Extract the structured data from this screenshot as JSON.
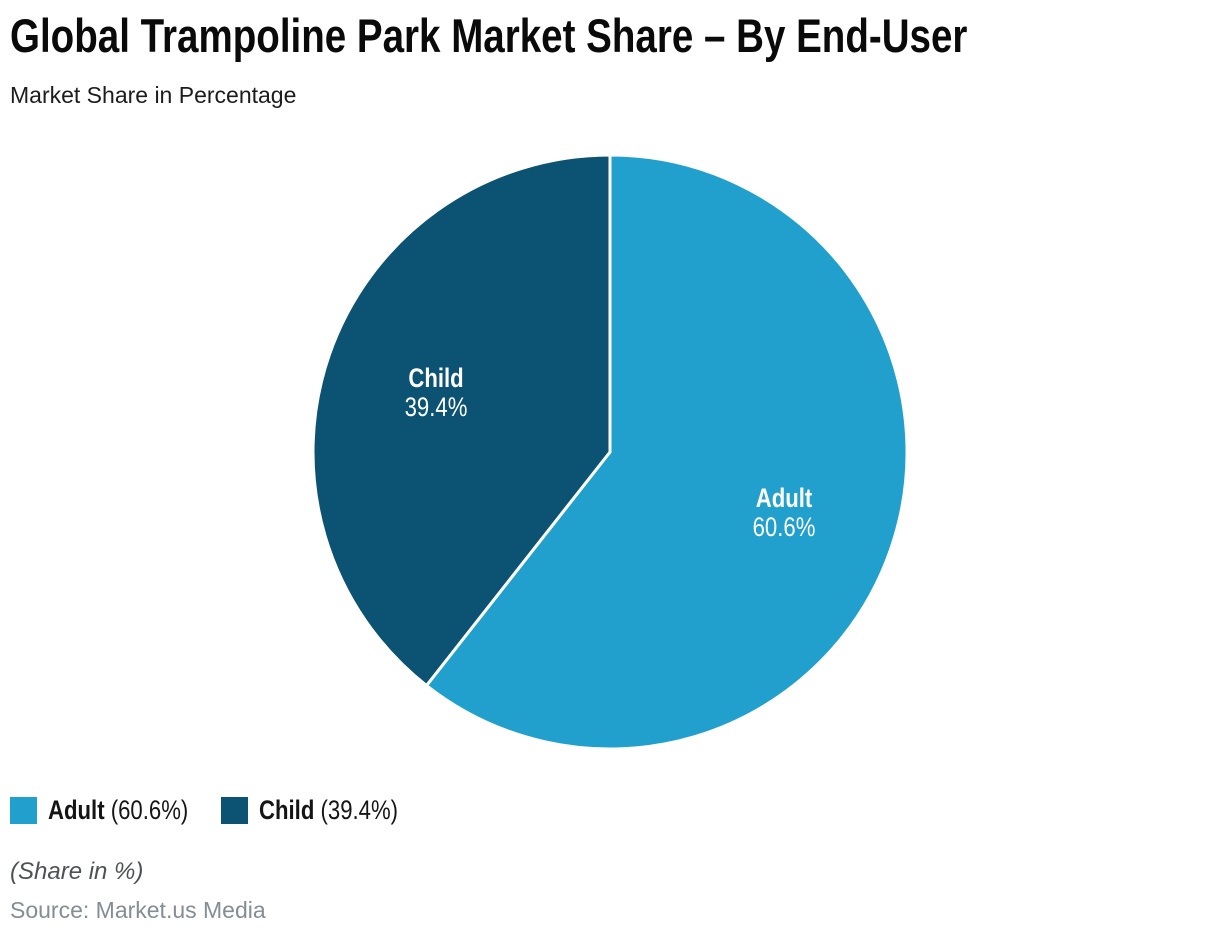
{
  "header": {
    "title": "Global Trampoline Park Market Share – By End-User",
    "subtitle": "Market Share in Percentage"
  },
  "chart_data": {
    "type": "pie",
    "title": "Global Trampoline Park Market Share – By End-User",
    "subtitle": "Market Share in Percentage",
    "unit": "%",
    "categories": [
      "Adult",
      "Child"
    ],
    "values": [
      60.6,
      39.4
    ],
    "value_labels": [
      "60.6%",
      "39.4%"
    ],
    "colors": [
      "#21A0CE",
      "#0B5273"
    ],
    "start_angle_deg": 0,
    "direction": "clockwise",
    "legend_position": "bottom-left"
  },
  "legend": {
    "items": [
      {
        "name": "Adult",
        "pct": "(60.6%)",
        "color": "#21A0CE"
      },
      {
        "name": "Child",
        "pct": "(39.4%)",
        "color": "#0B5273"
      }
    ]
  },
  "footer": {
    "note": "(Share in %)",
    "source": "Source: Market.us Media"
  }
}
